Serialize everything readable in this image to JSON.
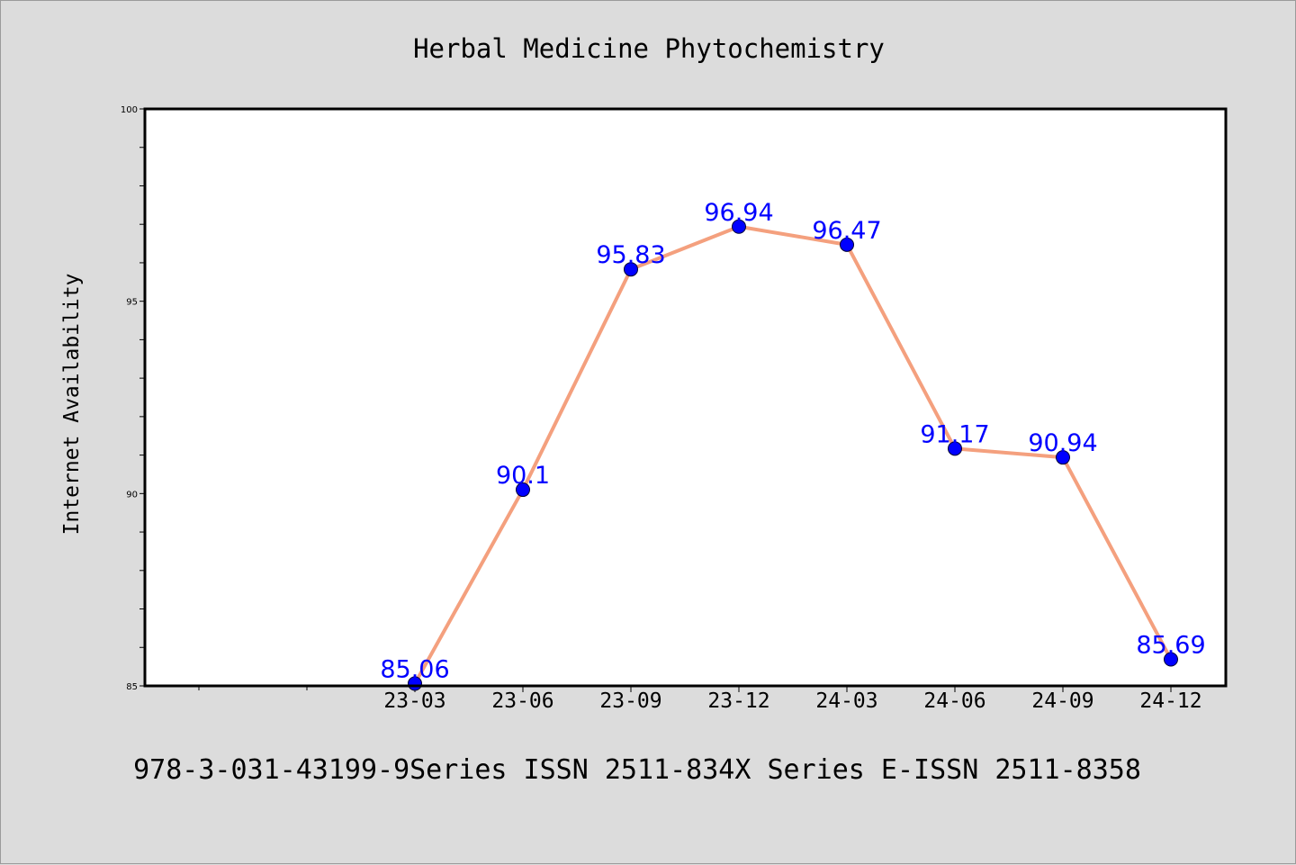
{
  "chart_data": {
    "type": "line",
    "title": "Herbal Medicine Phytochemistry",
    "xlabel": "",
    "ylabel": "Internet Availability",
    "categories": [
      "23-03",
      "23-06",
      "23-09",
      "23-12",
      "24-03",
      "24-06",
      "24-09",
      "24-12"
    ],
    "series": [
      {
        "values": [
          85.06,
          90.1,
          95.83,
          96.94,
          96.47,
          91.17,
          90.94,
          85.69
        ]
      }
    ],
    "data_labels": [
      "85.06",
      "90.1",
      "95.83",
      "96.94",
      "96.47",
      "91.17",
      "90.94",
      "85.69"
    ],
    "ylim": [
      85,
      100
    ],
    "y_ticks": [
      "85",
      "90",
      "95",
      "100"
    ],
    "grid": false,
    "legend": "none",
    "footer": "978-3-031-43199-9Series ISSN 2511-834X Series E-ISSN 2511-8358",
    "colors": {
      "background": "#dcdcdc",
      "plot_background": "#ffffff",
      "line": "#f4a07e",
      "marker": "#0000ff",
      "data_label": "#0000ff"
    }
  }
}
